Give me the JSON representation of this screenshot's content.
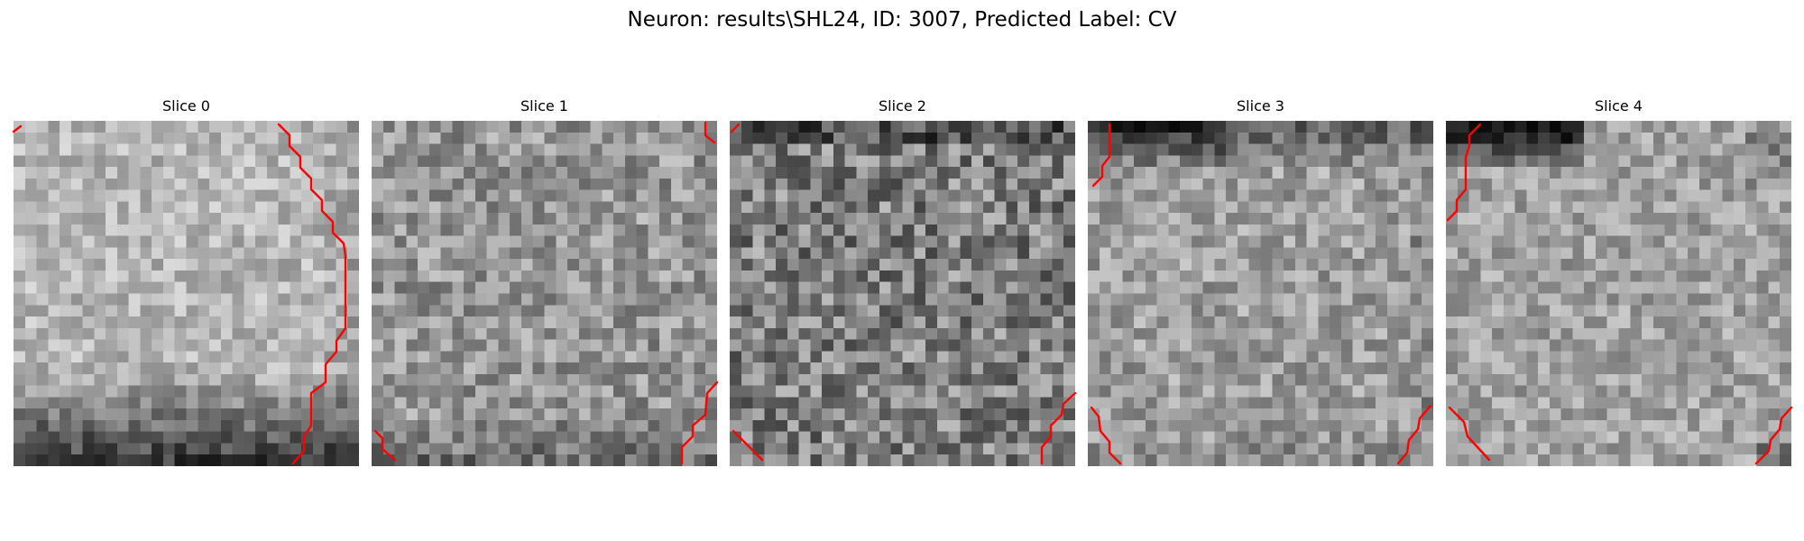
{
  "figure": {
    "title": "Neuron: results\\SHL24, ID: 3007, Predicted Label: CV"
  },
  "colors": {
    "trace": "#ff0000",
    "background": "#ffffff",
    "text": "#000000",
    "colormap": "gray"
  },
  "slices": [
    {
      "title": "Slice 0",
      "style": "bright-dark-bottom"
    },
    {
      "title": "Slice 1",
      "style": "medium"
    },
    {
      "title": "Slice 2",
      "style": "dark-noisy"
    },
    {
      "title": "Slice 3",
      "style": "dark-top"
    },
    {
      "title": "Slice 4",
      "style": "dark-top-band"
    }
  ]
}
